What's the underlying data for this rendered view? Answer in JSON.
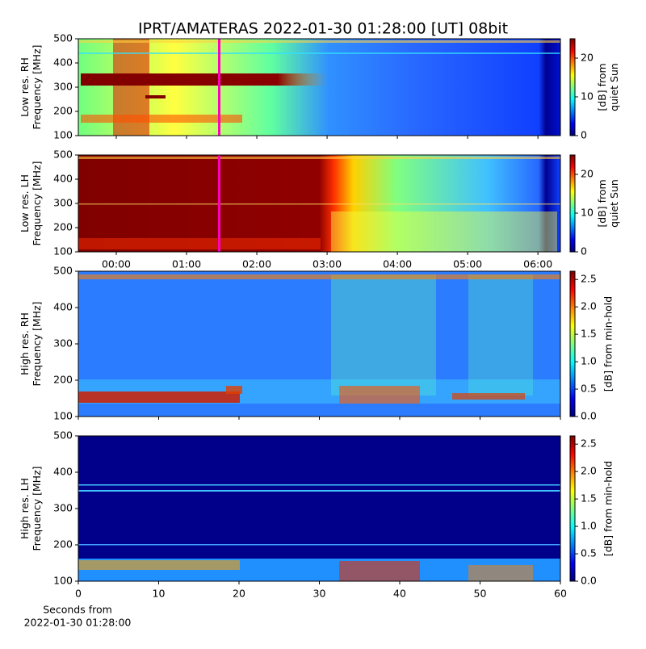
{
  "title": "IPRT/AMATERAS 2022-01-30 01:28:00 [UT]   08bit",
  "chart_data": [
    {
      "type": "spectrogram",
      "ylabel": [
        "Low res. RH",
        "Frequency [MHz]"
      ],
      "ylim": [
        100,
        500
      ],
      "yticks": [
        100,
        200,
        300,
        400,
        500
      ],
      "clabel": [
        "[dB] from",
        "quiet Sun"
      ],
      "clim": [
        0,
        25
      ],
      "cticks": [
        0,
        10,
        20
      ]
    },
    {
      "type": "spectrogram",
      "ylabel": [
        "Low res. LH",
        "Frequency [MHz]"
      ],
      "ylim": [
        100,
        500
      ],
      "yticks": [
        100,
        200,
        300,
        400,
        500
      ],
      "clabel": [
        "[dB] from",
        "quiet Sun"
      ],
      "clim": [
        0,
        25
      ],
      "cticks": [
        0,
        10,
        20
      ],
      "xlim": [
        -0.54,
        6.32
      ],
      "xticks": [
        {
          "value": 0,
          "label": "00:00"
        },
        {
          "value": 1,
          "label": "01:00"
        },
        {
          "value": 2,
          "label": "02:00"
        },
        {
          "value": 3,
          "label": "03:00"
        },
        {
          "value": 4,
          "label": "04:00"
        },
        {
          "value": 5,
          "label": "05:00"
        },
        {
          "value": 6,
          "label": "06:00"
        }
      ]
    },
    {
      "type": "spectrogram",
      "ylabel": [
        "High res. RH",
        "Frequency [MHz]"
      ],
      "ylim": [
        100,
        500
      ],
      "yticks": [
        100,
        200,
        300,
        400,
        500
      ],
      "clabel": [
        "[dB] from min-hold"
      ],
      "clim": [
        0,
        2.65
      ],
      "cticks": [
        {
          "value": 0,
          "label": "0.0"
        },
        {
          "value": 0.5,
          "label": "0.5"
        },
        {
          "value": 1,
          "label": "1.0"
        },
        {
          "value": 1.5,
          "label": "1.5"
        },
        {
          "value": 2,
          "label": "2.0"
        },
        {
          "value": 2.5,
          "label": "2.5"
        }
      ]
    },
    {
      "type": "spectrogram",
      "ylabel": [
        "High res. LH",
        "Frequency [MHz]"
      ],
      "ylim": [
        100,
        500
      ],
      "yticks": [
        100,
        200,
        300,
        400,
        500
      ],
      "clabel": [
        "[dB] from min-hold"
      ],
      "clim": [
        0,
        2.65
      ],
      "cticks": [
        {
          "value": 0,
          "label": "0.0"
        },
        {
          "value": 0.5,
          "label": "0.5"
        },
        {
          "value": 1,
          "label": "1.0"
        },
        {
          "value": 1.5,
          "label": "1.5"
        },
        {
          "value": 2,
          "label": "2.0"
        },
        {
          "value": 2.5,
          "label": "2.5"
        }
      ],
      "xlim": [
        0,
        60
      ],
      "xticks": [
        0,
        10,
        20,
        30,
        40,
        50,
        60
      ],
      "xlabel": [
        "Seconds from",
        "2022-01-30 01:28:00"
      ]
    }
  ]
}
